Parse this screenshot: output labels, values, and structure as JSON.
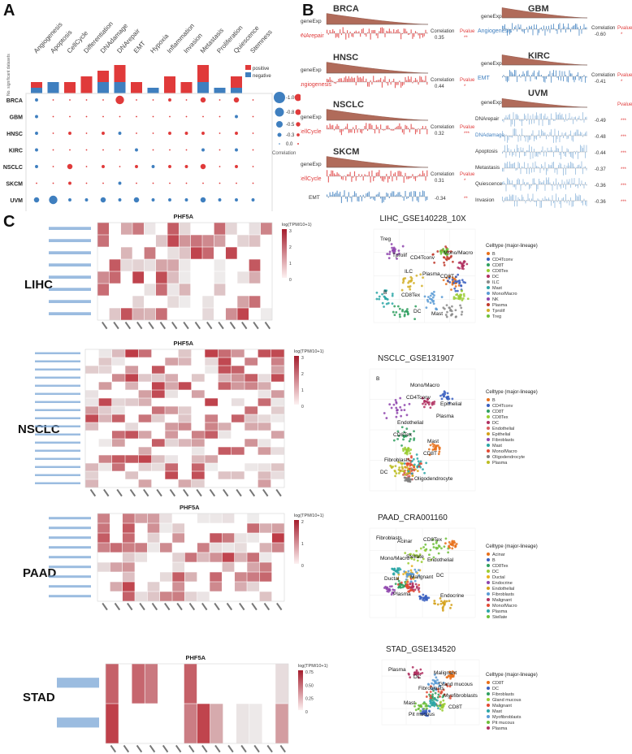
{
  "panels": {
    "a": "A",
    "b": "B",
    "c": "C"
  },
  "panelA": {
    "pathways": [
      "Angiogenesis",
      "Apoptosis",
      "CellCycle",
      "Differentiation",
      "DNAdamage",
      "DNArepair",
      "EMT",
      "Hypoxia",
      "Inflammation",
      "Invasion",
      "Metastasis",
      "Proliferation",
      "Quiescence",
      "Stemness"
    ],
    "cancers": [
      "BRCA",
      "GBM",
      "HNSC",
      "KIRC",
      "NSCLC",
      "SKCM",
      "UVM"
    ],
    "bar_axis_label": "No. significant datasets",
    "legend_pos": "positive",
    "legend_neg": "negative",
    "legend_pos_color": "#e03a3a",
    "legend_neg_color": "#3f7fbf",
    "size_legend_neg": [
      "-1.0",
      "-0.8",
      "-0.5",
      "-0.3",
      "0.0"
    ],
    "size_legend_pos": [
      "1.0",
      "0.8",
      "0.5",
      "0.3",
      "0.0"
    ],
    "size_legend_title": "Correlation",
    "pos_counts": [
      1,
      0,
      2,
      3,
      2,
      3,
      2,
      0,
      3,
      2,
      3,
      0,
      2,
      0
    ],
    "neg_counts": [
      1,
      2,
      0,
      0,
      2,
      2,
      0,
      1,
      0,
      0,
      2,
      1,
      1,
      0
    ],
    "dots": [
      [
        -0.3,
        0,
        0,
        0,
        0,
        0.8,
        0,
        0,
        0.3,
        0,
        0.5,
        0,
        0.5,
        0
      ],
      [
        -0.3,
        0,
        0,
        0,
        0,
        0,
        0,
        0,
        0,
        0,
        0,
        0,
        -0.3,
        0
      ],
      [
        -0.3,
        0,
        0.3,
        0,
        0.3,
        -0.3,
        0,
        0,
        0.3,
        0.3,
        0.3,
        0,
        0.3,
        0
      ],
      [
        -0.3,
        0,
        0,
        0,
        0,
        0,
        -0.3,
        0,
        0,
        0,
        -0.3,
        0,
        -0.3,
        0
      ],
      [
        -0.3,
        0,
        0.5,
        0,
        0.3,
        0,
        0.3,
        -0.3,
        0.3,
        0.3,
        0.5,
        0,
        0.3,
        0
      ],
      [
        0,
        0,
        0.3,
        0,
        0,
        -0.3,
        0,
        0,
        0,
        0,
        0,
        0,
        0,
        0
      ],
      [
        -0.5,
        -0.8,
        -0.3,
        -0.3,
        -0.5,
        -0.3,
        -0.5,
        -0.3,
        -0.3,
        -0.3,
        -0.5,
        -0.3,
        -0.3,
        -0.3
      ]
    ]
  },
  "panelB": {
    "left": [
      {
        "title": "BRCA",
        "pathway": "DNArepair",
        "pcolor": "#e03a3a",
        "corr": "0.35",
        "pval": "**"
      },
      {
        "title": "HNSC",
        "pathway": "Angiogenesis",
        "pcolor": "#e03a3a",
        "corr": "0.44",
        "pval": "*"
      },
      {
        "title": "NSCLC",
        "pathway": "CellCycle",
        "pcolor": "#e03a3a",
        "corr": "0.32",
        "pval": "***"
      },
      {
        "title": "SKCM",
        "pathway": "CellCycle",
        "pcolor": "#e03a3a",
        "corr": "0.31",
        "pval": "*"
      }
    ],
    "skcm_emt": {
      "label": "EMT",
      "corr": "-0.34",
      "pval": "**"
    },
    "right": [
      {
        "title": "GBM",
        "pathway": "Angiogenesis",
        "pcolor": "#3f7fbf",
        "corr": "-0.60",
        "pval": "*"
      },
      {
        "title": "KIRC",
        "pathway": "EMT",
        "pcolor": "#3f7fbf",
        "corr": "-0.41",
        "pval": "*"
      }
    ],
    "uvm": {
      "title": "UVM",
      "rows": [
        {
          "name": "DNArepair",
          "corr": "-0.49",
          "pval": "***",
          "color": "#333"
        },
        {
          "name": "DNAdamage",
          "corr": "-0.48",
          "pval": "***",
          "color": "#3f7fbf"
        },
        {
          "name": "Apoptosis",
          "corr": "-0.44",
          "pval": "***",
          "color": "#333"
        },
        {
          "name": "Metastasis",
          "corr": "-0.37",
          "pval": "***",
          "color": "#333"
        },
        {
          "name": "Quiescence",
          "corr": "-0.36",
          "pval": "***",
          "color": "#333"
        },
        {
          "name": "Invasion",
          "corr": "-0.36",
          "pval": "***",
          "color": "#333"
        }
      ]
    },
    "gene_label": "geneExp",
    "corr_label": "Correlation",
    "pval_label": "Pvalue"
  },
  "panelC": {
    "rows": [
      {
        "label": "LIHC",
        "hm_title": "PHF5A",
        "legend_title": "log(TPM/10+1)",
        "umap_title": "LIHC_GSE140228_10X",
        "celltypes": [
          "B",
          "CD4Tconv",
          "CD8T",
          "CD8Tex",
          "DC",
          "ILC",
          "Mast",
          "Mono/Macro",
          "NK",
          "Plasma",
          "Tprolif",
          "Treg"
        ],
        "colors": [
          "#e8701a",
          "#3a5fbf",
          "#2f9f5f",
          "#9acd32",
          "#b03060",
          "#8a8a8a",
          "#2aa6a6",
          "#5b9bd5",
          "#8e44ad",
          "#c0392b",
          "#d4b02a",
          "#6fbf3a"
        ],
        "umap_labels": [
          "Treg",
          "CD4Tconv",
          "CD8T",
          "CD8Tex",
          "Mast",
          "Tprolif",
          "Plasma",
          "B",
          "DC",
          "Mono/Macro",
          "ILC"
        ]
      },
      {
        "label": "NSCLC",
        "hm_title": "PHF5A",
        "legend_title": "log(TPM/10+1)",
        "umap_title": "NSCLC_GSE131907",
        "celltypes": [
          "B",
          "CD4Tconv",
          "CD8T",
          "CD8Tex",
          "DC",
          "Endothelial",
          "Epithelial",
          "Fibroblasts",
          "Mast",
          "Mono/Macro",
          "Oligodendrocyte",
          "Plasma"
        ],
        "colors": [
          "#e8701a",
          "#3a5fbf",
          "#2f9f5f",
          "#9acd32",
          "#b03060",
          "#d95f5f",
          "#d4a017",
          "#8e44ad",
          "#2aa6a6",
          "#e34a33",
          "#7f7f7f",
          "#bcbd22"
        ],
        "umap_labels": [
          "B",
          "CD4Tconv",
          "Plasma",
          "CD8Tex",
          "CD8T",
          "DC",
          "Mono/Macro",
          "Epithelial",
          "Endothelial",
          "Mast",
          "Fibroblasts",
          "Oligodendrocyte"
        ]
      },
      {
        "label": "PAAD",
        "hm_title": "PHF5A",
        "legend_title": "log(TPM/10+1)",
        "umap_title": "PAAD_CRA001160",
        "celltypes": [
          "Acinar",
          "B",
          "CD8Tex",
          "DC",
          "Ductal",
          "Endocrine",
          "Endothelial",
          "Fibroblasts",
          "Malignant",
          "Mono/Macro",
          "Plasma",
          "Stellate"
        ],
        "colors": [
          "#e8701a",
          "#3a5fbf",
          "#2f9f5f",
          "#9acd32",
          "#e8b020",
          "#8e44ad",
          "#d4a017",
          "#5b9bd5",
          "#b03060",
          "#e34a33",
          "#2aa6a6",
          "#6fbf3a"
        ],
        "umap_labels": [
          "Fibroblasts",
          "Stellate",
          "DC",
          "Plasma",
          "CD8Tex",
          "Mono/Macro",
          "Malignant",
          "Endocrine",
          "Acinar",
          "Endothelial",
          "Ductal"
        ]
      },
      {
        "label": "STAD",
        "hm_title": "PHF5A",
        "legend_title": "log(TPM/10+1)",
        "umap_title": "STAD_GSE134520",
        "celltypes": [
          "CD8T",
          "DC",
          "Fibroblasts",
          "Gland mucous",
          "Malignant",
          "Mast",
          "Myofibroblasts",
          "Pit mucous",
          "Plasma"
        ],
        "colors": [
          "#e8701a",
          "#3a5fbf",
          "#2f9f5f",
          "#9acd32",
          "#e34a33",
          "#2aa6a6",
          "#5b9bd5",
          "#6fbf3a",
          "#b03060"
        ],
        "umap_labels": [
          "Plasma",
          "Fibroblasts",
          "CD8T",
          "DC",
          "Myofibroblasts",
          "Pit mucous",
          "Gland mucous",
          "Mast",
          "Malignant"
        ]
      }
    ],
    "legend_heading": "Celltype (major-lineage)",
    "lihc_scale": [
      "3",
      "2",
      "1",
      "0"
    ],
    "nsclc_scale": [
      "3",
      "2",
      "1",
      "0"
    ],
    "paad_scale": [
      "2",
      "1",
      "0"
    ],
    "stad_scale": [
      "0.75",
      "0.50",
      "0.25",
      "0"
    ]
  }
}
